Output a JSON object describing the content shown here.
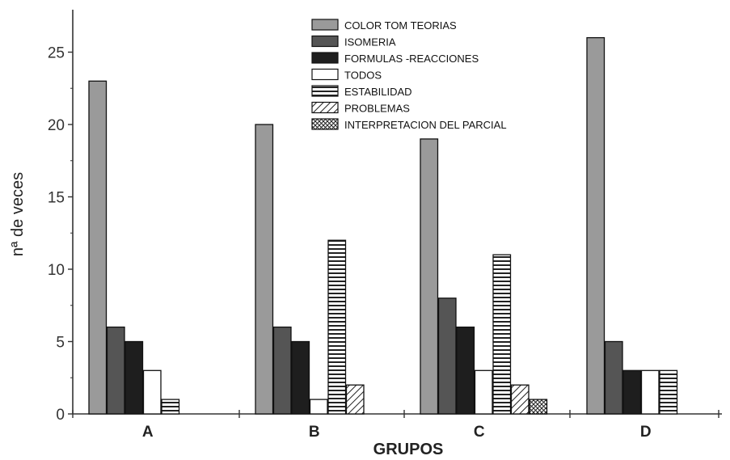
{
  "chart_data": {
    "type": "bar",
    "title": "",
    "xlabel": "GRUPOS",
    "ylabel": "nª de veces",
    "categories": [
      "A",
      "B",
      "C",
      "D"
    ],
    "ylim": [
      0,
      27
    ],
    "yticks": [
      0,
      5,
      10,
      15,
      20,
      25
    ],
    "grid": false,
    "legend_position": "top-center",
    "series": [
      {
        "name": "COLOR TOM TEORIAS",
        "values": [
          23,
          20,
          19,
          26
        ],
        "pattern": "solid",
        "color": "#9a9a9a"
      },
      {
        "name": "ISOMERIA",
        "values": [
          6,
          6,
          8,
          5
        ],
        "pattern": "solid",
        "color": "#555555"
      },
      {
        "name": "FORMULAS -REACCIONES",
        "values": [
          5,
          5,
          6,
          3
        ],
        "pattern": "solid",
        "color": "#1e1e1e"
      },
      {
        "name": "TODOS",
        "values": [
          3,
          1,
          3,
          3
        ],
        "pattern": "white",
        "color": "#ffffff"
      },
      {
        "name": "ESTABILIDAD",
        "values": [
          1,
          12,
          11,
          3
        ],
        "pattern": "hstripes",
        "color": "#222222"
      },
      {
        "name": "PROBLEMAS",
        "values": [
          0,
          2,
          2,
          0
        ],
        "pattern": "diagonal",
        "color": "#222222"
      },
      {
        "name": "INTERPRETACION DEL PARCIAL",
        "values": [
          0,
          0,
          1,
          0
        ],
        "pattern": "crosshatch",
        "color": "#222222"
      }
    ]
  }
}
